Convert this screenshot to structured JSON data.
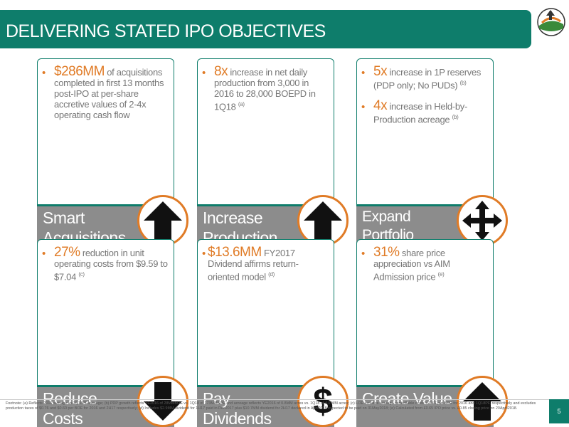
{
  "header": {
    "title": "DELIVERING STATED IPO OBJECTIVES"
  },
  "cards": [
    {
      "bullets": [
        {
          "highlight": "$286MM",
          "text": " of acquisitions completed in first 13 months post-IPO at per-share accretive values of 2-4x operating cash flow",
          "sup": ""
        }
      ],
      "label": "Smart Acquisitions",
      "icon": "arrow-up-icon"
    },
    {
      "bullets": [
        {
          "highlight": "8x",
          "text": " increase in net daily production from 3,000  in 2016 to 28,000 BOEPD in 1Q18",
          "sup": "(a)"
        }
      ],
      "label": "Increase Production",
      "icon": "arrow-up-icon"
    },
    {
      "bullets": [
        {
          "highlight": "5x",
          "text": " increase in 1P reserves (PDP only; No PUDs)",
          "sup": "(b)"
        },
        {
          "highlight": "4x",
          "text": " increase in Held-by-Production acreage",
          "sup": "(b)"
        }
      ],
      "label": "Expand Portfolio",
      "icon": "four-way-arrow-icon"
    },
    {
      "bullets": [
        {
          "highlight": "27%",
          "text": " reduction in unit operating costs from $9.59 to $7.04",
          "sup": "(c)"
        }
      ],
      "label": "Reduce Costs",
      "icon": "arrow-down-icon"
    },
    {
      "bullets": [
        {
          "highlight": "$13.6MM",
          "text": " FY2017 Dividend affirms return-oriented model",
          "sup": "(d)"
        }
      ],
      "label": "Pay Dividends",
      "icon": "dollar-icon",
      "icon_glyph": "$"
    },
    {
      "bullets": [
        {
          "highlight": "31%",
          "text": " share price appreciation vs AIM Admission price",
          "sup": "(e)"
        }
      ],
      "label": "Create Value",
      "icon": "arrow-up-icon"
    }
  ],
  "footnote": "Footnote: (a) Reflects 2016 average vs 1Q18PF average; (b) PDP growth reflects YE2016 of 28MMBOE vs. 1Q18 of 173MMBOE and acreage reflects YE2016 of 0.8MM acres vs. 1Q18 of 4.0 MM acres; (c) LOE includes average controllable costs + G&T per BOE for 2016 and 1Q18PF, respectively and excludes production taxes of $0.76 and $0.60 per BOE for 2016 and 2H17 respectively; (d) Includes $2.9MM dividend for 1H17 paid in Dec2017 plus $10.7MM dividend for 2H17 declared in April2018 expected to be paid on 31May2018; (e) Calculated from £0.65 IPO price vs. £0.85 closing price on 20April2018.",
  "page_number": "5",
  "colors": {
    "brand_teal": "#0e7d6b",
    "accent_orange": "#e07b26",
    "footer_gray": "#8c8c8c"
  }
}
